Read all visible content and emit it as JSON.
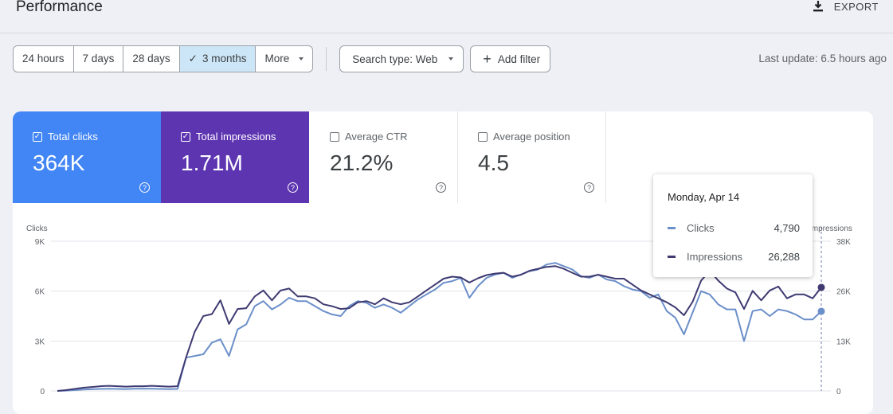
{
  "header": {
    "title": "Performance",
    "export_label": "EXPORT"
  },
  "filters": {
    "date_ranges": [
      {
        "label": "24 hours",
        "active": false
      },
      {
        "label": "7 days",
        "active": false
      },
      {
        "label": "28 days",
        "active": false
      },
      {
        "label": "3 months",
        "active": true
      }
    ],
    "more_label": "More",
    "search_type": "Search type: Web",
    "add_filter": "Add filter",
    "last_update": "Last update: 6.5 hours ago"
  },
  "metrics": {
    "clicks": {
      "label": "Total clicks",
      "value": "364K",
      "checked": true,
      "color": "#4285f4"
    },
    "impressions": {
      "label": "Total impressions",
      "value": "1.71M",
      "checked": true,
      "color": "#5e35b1"
    },
    "ctr": {
      "label": "Average CTR",
      "value": "21.2%",
      "checked": false
    },
    "position": {
      "label": "Average position",
      "value": "4.5",
      "checked": false
    }
  },
  "chart_data": {
    "type": "line",
    "ylabel_left": "Clicks",
    "ylabel_right": "Impressions",
    "yticks_left": [
      "0",
      "3K",
      "6K",
      "9K"
    ],
    "yticks_right": [
      "0",
      "13K",
      "26K",
      "38K"
    ],
    "ylim_left": [
      0,
      9000
    ],
    "ylim_right": [
      0,
      38000
    ],
    "series": [
      {
        "name": "Clicks",
        "axis": "left",
        "color": "#6b8fc9",
        "values": [
          0,
          20,
          50,
          80,
          100,
          120,
          130,
          120,
          110,
          130,
          140,
          130,
          120,
          110,
          120,
          2000,
          2100,
          2200,
          2900,
          3100,
          2100,
          3700,
          4000,
          5100,
          5400,
          4900,
          5200,
          5600,
          5400,
          5400,
          5100,
          4800,
          4600,
          4500,
          5100,
          5400,
          5300,
          5000,
          5200,
          5000,
          4700,
          5100,
          5500,
          5800,
          6100,
          6500,
          6600,
          6800,
          5600,
          6300,
          6800,
          7000,
          7100,
          6800,
          7000,
          7200,
          7300,
          7600,
          7700,
          7500,
          7300,
          6900,
          6800,
          7000,
          6700,
          6600,
          6300,
          6100,
          6000,
          5600,
          5800,
          4800,
          4400,
          3400,
          4700,
          6000,
          5800,
          5200,
          4900,
          4900,
          3000,
          4800,
          4900,
          4500,
          4900,
          4800,
          4600,
          4300,
          4300,
          4790
        ]
      },
      {
        "name": "Impressions",
        "axis": "right",
        "color": "#3f3b72",
        "values": [
          0,
          200,
          500,
          800,
          1000,
          1200,
          1300,
          1200,
          1100,
          1200,
          1200,
          1300,
          1200,
          1100,
          1200,
          8500,
          15000,
          19000,
          19500,
          23000,
          17000,
          20800,
          21000,
          24000,
          25500,
          23000,
          25500,
          26000,
          24000,
          24000,
          23500,
          22000,
          21500,
          20800,
          21000,
          22500,
          22800,
          22000,
          23500,
          22500,
          22000,
          22500,
          24000,
          25500,
          27000,
          28500,
          29000,
          28800,
          27500,
          28600,
          29400,
          29800,
          30000,
          29000,
          29500,
          30500,
          31000,
          31500,
          31700,
          31000,
          30000,
          29000,
          29000,
          29500,
          29000,
          28500,
          28500,
          27000,
          25500,
          24500,
          23500,
          22500,
          21200,
          19200,
          22600,
          28000,
          30500,
          28000,
          26000,
          25000,
          20800,
          25400,
          23000,
          25500,
          26500,
          23500,
          24500,
          24500,
          23500,
          26288
        ]
      }
    ],
    "tooltip": {
      "date": "Monday, Apr 14",
      "rows": [
        {
          "name": "Clicks",
          "value": "4,790",
          "color": "#6b8fc9"
        },
        {
          "name": "Impressions",
          "value": "26,288",
          "color": "#3f3b72"
        }
      ]
    }
  }
}
